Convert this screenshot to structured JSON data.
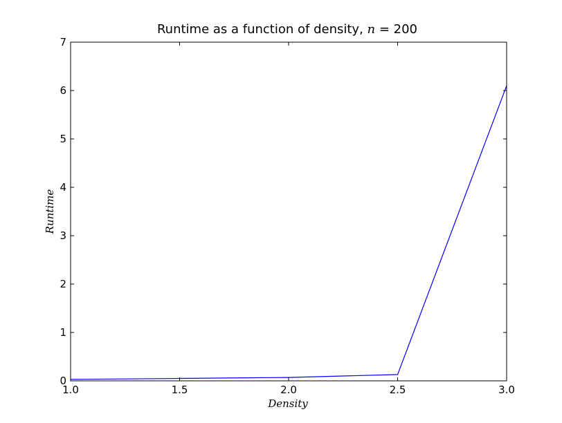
{
  "chart_data": {
    "type": "line",
    "title_prefix": "Runtime as a function of density, ",
    "title_var": "n",
    "title_suffix": " = 200",
    "xlabel": "Density",
    "ylabel": "Runtime",
    "xlim": [
      1.0,
      3.0
    ],
    "ylim": [
      0,
      7
    ],
    "xticks": [
      "1.0",
      "1.5",
      "2.0",
      "2.5",
      "3.0"
    ],
    "yticks": [
      "0",
      "1",
      "2",
      "3",
      "4",
      "5",
      "6",
      "7"
    ],
    "grid": false,
    "series": [
      {
        "color": "#0000ff",
        "x": [
          1.0,
          1.5,
          2.0,
          2.5,
          3.0
        ],
        "y": [
          0.03,
          0.05,
          0.07,
          0.13,
          6.1
        ]
      }
    ]
  }
}
